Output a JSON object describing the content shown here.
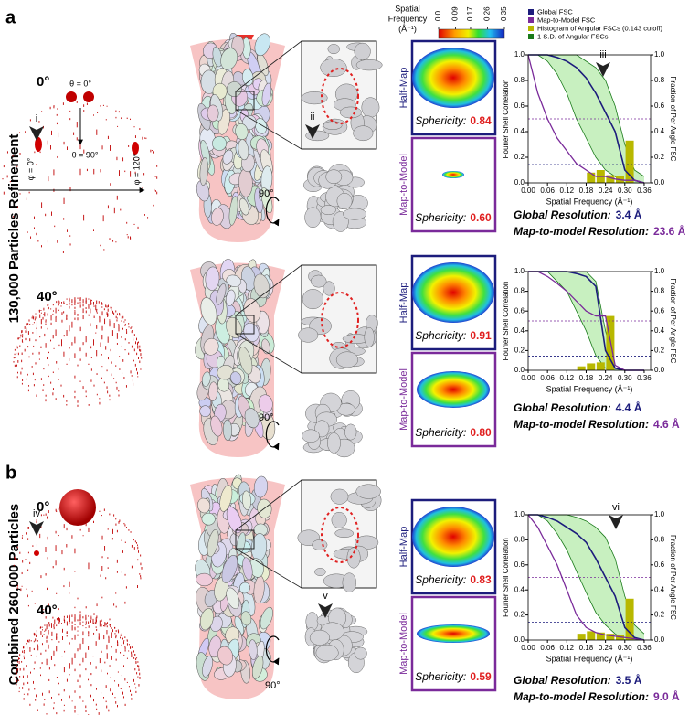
{
  "labels": {
    "panel_a": "a",
    "panel_b": "b",
    "title_a": "130,000 Particles Refinement",
    "title_b": "Combined 260,000 Particles"
  },
  "orientation_labels": {
    "theta0": "θ = 0°",
    "theta90": "θ = 90°",
    "phi0": "φ = 0°",
    "phi120": "φ = 120°"
  },
  "angles": [
    "0°",
    "40°",
    "0°",
    "40°"
  ],
  "callouts": [
    "i",
    "ii",
    "iii",
    "iv",
    "v",
    "vi"
  ],
  "rotation_labels": [
    "90°",
    "90°",
    "90°"
  ],
  "colorbar": {
    "title": [
      "Spatial",
      "Frequency",
      "(Å⁻¹)"
    ],
    "lim": [
      0,
      0.35
    ],
    "ticks": [
      {
        "value": 0,
        "label": "0.0"
      },
      0.09,
      0.17,
      0.26,
      0.35
    ]
  },
  "legend": [
    {
      "name": "Global FSC",
      "color": "#1c1c7c"
    },
    {
      "name": "Map-to-Model FSC",
      "color": "#7a2a9a"
    },
    {
      "name": "Histogram of Angular FSCs (0.143 cutoff)",
      "color": "#b8b800"
    },
    {
      "name": "1 S.D. of Angular FSCs",
      "color": "#1a7a1a"
    }
  ],
  "box_labels": {
    "half_map": "Half-Map",
    "map_to_model": "Map-to-Model",
    "sphericity": "Sphericity:"
  },
  "resolution_labels": {
    "global": "Global Resolution:",
    "map_to_model": "Map-to-model Resolution:"
  },
  "results": [
    {
      "half_map_sphericity": "0.84",
      "map_to_model_sphericity": "0.60",
      "global_resolution": "3.4 Å",
      "map_to_model_resolution": "23.6 Å"
    },
    {
      "half_map_sphericity": "0.91",
      "map_to_model_sphericity": "0.80",
      "global_resolution": "4.4 Å",
      "map_to_model_resolution": "4.6 Å"
    },
    {
      "half_map_sphericity": "0.83",
      "map_to_model_sphericity": "0.59",
      "global_resolution": "3.5 Å",
      "map_to_model_resolution": "9.0 Å"
    }
  ],
  "fsc_axes": {
    "ylabel": "Fourier Shell Correlation",
    "y2label": "Fraction of Per Angle FSC",
    "xlabel": "Spatial Frequency (Å⁻¹)",
    "xlim": [
      0,
      0.38
    ],
    "ylim": [
      0,
      1
    ],
    "xticks": [
      {
        "value": 0,
        "label": "0.00"
      },
      0.06,
      0.12,
      0.18,
      0.24,
      {
        "value": 0.3,
        "label": "0.30"
      },
      0.36
    ],
    "yticks": [
      {
        "value": 0,
        "label": "0.0"
      },
      0.2,
      0.4,
      0.6,
      0.8,
      {
        "value": 1,
        "label": "1.0"
      }
    ],
    "thresholds": [
      0.5,
      0.143
    ],
    "x": [
      0,
      0.03,
      0.06,
      0.09,
      0.12,
      0.15,
      0.18,
      0.21,
      0.24,
      0.27,
      0.3,
      0.33,
      0.36
    ]
  },
  "fsc_plots": [
    {
      "global": [
        1,
        1,
        1,
        0.98,
        0.95,
        0.9,
        0.82,
        0.7,
        0.55,
        0.4,
        0.1,
        0.02,
        0
      ],
      "map_to_model": [
        1,
        0.7,
        0.5,
        0.35,
        0.25,
        0.15,
        0.1,
        0.05,
        0.05,
        0.03,
        0.02,
        0.02,
        0
      ],
      "sd_upper": [
        1,
        1,
        1,
        1,
        1,
        1,
        0.95,
        0.9,
        0.8,
        0.6,
        0.3,
        0.1,
        0.05
      ],
      "sd_lower": [
        1,
        1,
        0.95,
        0.85,
        0.7,
        0.5,
        0.35,
        0.2,
        0.1,
        0.05,
        0,
        0,
        0
      ],
      "hist_bins": [
        0.18,
        0.21,
        0.24,
        0.27,
        0.3,
        0.33
      ],
      "hist_counts": [
        0.08,
        0.1,
        0.06,
        0.05,
        0.33
      ]
    },
    {
      "global": [
        1,
        1,
        1,
        1,
        1,
        0.98,
        0.95,
        0.85,
        0.2,
        0.02,
        0,
        0,
        0
      ],
      "map_to_model": [
        1,
        1,
        0.95,
        0.88,
        0.8,
        0.7,
        0.6,
        0.55,
        0.55,
        0.05,
        0,
        0,
        0
      ],
      "sd_upper": [
        1,
        1,
        1,
        1,
        1,
        1,
        1,
        0.9,
        0.4,
        0.02,
        0,
        0,
        0
      ],
      "sd_lower": [
        1,
        1,
        1,
        0.9,
        0.8,
        0.6,
        0.4,
        0.15,
        0.02,
        0,
        0,
        0,
        0
      ],
      "hist_bins": [
        0.15,
        0.18,
        0.21,
        0.24,
        0.27
      ],
      "hist_counts": [
        0.04,
        0.07,
        0.08,
        0.55
      ]
    },
    {
      "global": [
        1,
        1,
        0.98,
        0.95,
        0.9,
        0.85,
        0.78,
        0.65,
        0.5,
        0.35,
        0.1,
        0.02,
        0
      ],
      "map_to_model": [
        1,
        0.9,
        0.75,
        0.6,
        0.4,
        0.2,
        0.1,
        0.06,
        0.04,
        0.03,
        0.02,
        0.01,
        0
      ],
      "sd_upper": [
        1,
        1,
        1,
        1,
        1,
        0.98,
        0.95,
        0.9,
        0.82,
        0.65,
        0.35,
        0.12,
        0.05
      ],
      "sd_lower": [
        1,
        1,
        0.95,
        0.85,
        0.72,
        0.55,
        0.38,
        0.22,
        0.12,
        0.05,
        0,
        0,
        0
      ],
      "hist_bins": [
        0.15,
        0.18,
        0.21,
        0.24,
        0.27,
        0.3,
        0.33
      ],
      "hist_counts": [
        0.05,
        0.07,
        0.06,
        0.05,
        0.04,
        0.33
      ]
    }
  ]
}
